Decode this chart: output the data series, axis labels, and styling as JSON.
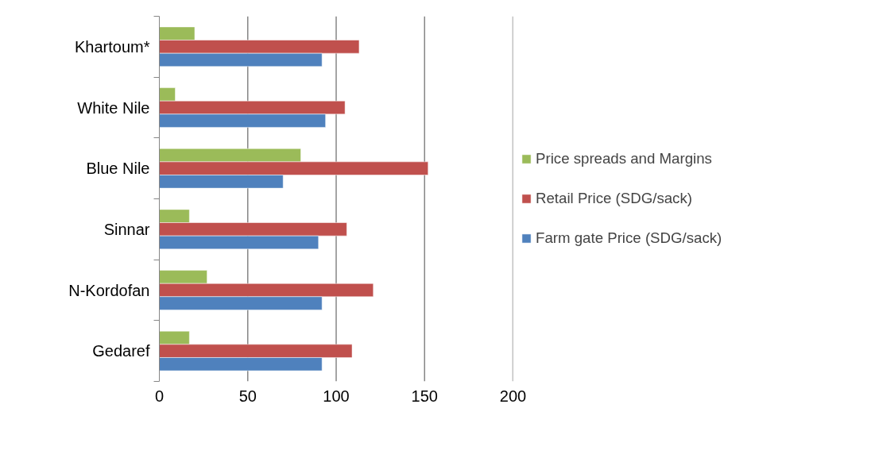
{
  "chart_data": {
    "type": "bar",
    "orientation": "horizontal",
    "categories": [
      "Khartoum*",
      "White Nile",
      "Blue Nile",
      "Sinnar",
      "N-Kordofan",
      "Gedaref"
    ],
    "series": [
      {
        "name": "Price spreads and Margins",
        "color": "#9bbb59",
        "values": [
          20,
          9,
          80,
          17,
          27,
          17
        ]
      },
      {
        "name": "Retail Price (SDG/sack)",
        "color": "#c0504d",
        "values": [
          113,
          105,
          152,
          106,
          121,
          109
        ]
      },
      {
        "name": "Farm gate Price (SDG/sack)",
        "color": "#4f81bd",
        "values": [
          92,
          94,
          70,
          90,
          92,
          92
        ]
      }
    ],
    "xlim": [
      0,
      200
    ],
    "xticks": [
      0,
      50,
      100,
      150,
      200
    ],
    "grid": "x",
    "legend": "right"
  }
}
